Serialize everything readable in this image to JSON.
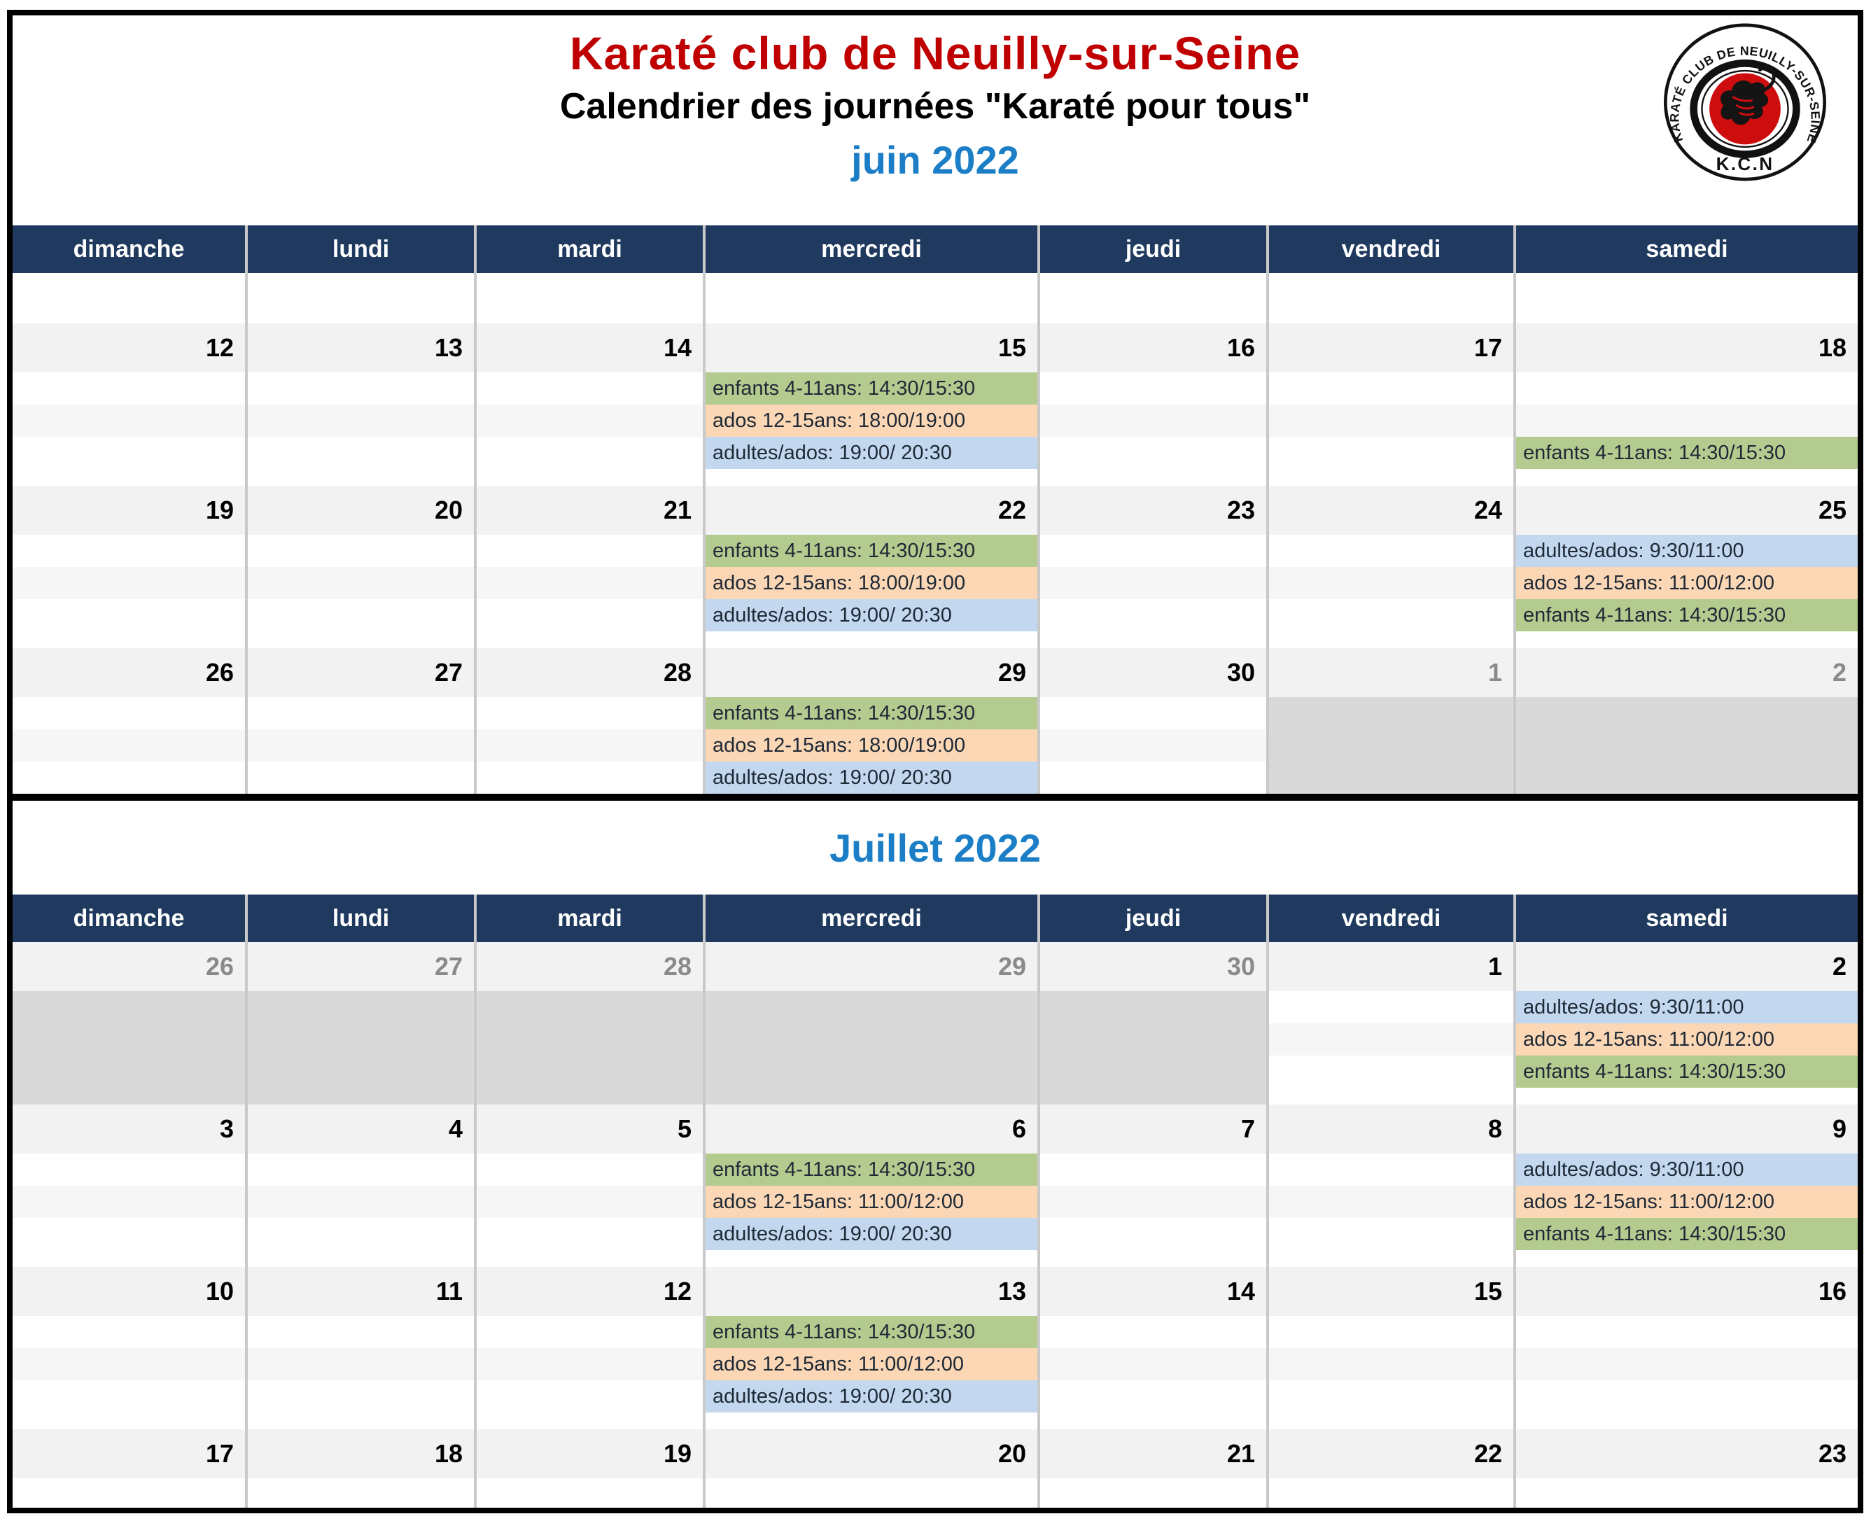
{
  "page": {
    "title": "Karaté club de Neuilly-sur-Seine",
    "subtitle": "Calendrier des journées \"Karaté pour tous\""
  },
  "logo": {
    "ring_text": "KARATÉ CLUB DE NEUILLY-SUR-SEINE",
    "acronym": "K.C.N"
  },
  "weekdays": [
    "dimanche",
    "lundi",
    "mardi",
    "mercredi",
    "jeudi",
    "vendredi",
    "samedi"
  ],
  "colors": {
    "title_red": "#C00000",
    "month_blue": "#1B7EC6",
    "header_navy": "#1F3A5E",
    "event_green": "#B4CB90",
    "event_orange": "#FBD7B5",
    "event_blue": "#C3D8EF",
    "number_band_gray": "#F2F2F2",
    "out_of_month_gray": "#D9D9D9",
    "muted_number_gray": "#8A8A8A",
    "logo_red": "#CE0E0E"
  },
  "months": [
    {
      "title": "juin 2022",
      "weeks": [
        {
          "type": "empty",
          "days": [
            {},
            {},
            {},
            {},
            {},
            {},
            {}
          ]
        },
        {
          "days": [
            {
              "num": "12"
            },
            {
              "num": "13"
            },
            {
              "num": "14"
            },
            {
              "num": "15",
              "events": [
                {
                  "c": "green",
                  "t": "enfants 4-11ans: 14:30/15:30"
                },
                {
                  "c": "orange",
                  "t": "ados 12-15ans: 18:00/19:00"
                },
                {
                  "c": "blue",
                  "t": "adultes/ados: 19:00/ 20:30"
                }
              ]
            },
            {
              "num": "16"
            },
            {
              "num": "17"
            },
            {
              "num": "18",
              "events": [
                null,
                null,
                {
                  "c": "green",
                  "t": "enfants 4-11ans: 14:30/15:30"
                }
              ]
            }
          ]
        },
        {
          "days": [
            {
              "num": "19"
            },
            {
              "num": "20"
            },
            {
              "num": "21"
            },
            {
              "num": "22",
              "events": [
                {
                  "c": "green",
                  "t": "enfants 4-11ans: 14:30/15:30"
                },
                {
                  "c": "orange",
                  "t": "ados 12-15ans: 18:00/19:00"
                },
                {
                  "c": "blue",
                  "t": "adultes/ados: 19:00/ 20:30"
                }
              ]
            },
            {
              "num": "23"
            },
            {
              "num": "24"
            },
            {
              "num": "25",
              "events": [
                {
                  "c": "blue",
                  "t": "adultes/ados: 9:30/11:00"
                },
                {
                  "c": "orange",
                  "t": "ados 12-15ans: 11:00/12:00"
                },
                {
                  "c": "green",
                  "t": "enfants 4-11ans: 14:30/15:30"
                }
              ]
            }
          ]
        },
        {
          "type": "last",
          "days": [
            {
              "num": "26"
            },
            {
              "num": "27"
            },
            {
              "num": "28"
            },
            {
              "num": "29",
              "events": [
                {
                  "c": "green",
                  "t": "enfants 4-11ans: 14:30/15:30"
                },
                {
                  "c": "orange",
                  "t": "ados 12-15ans: 18:00/19:00"
                },
                {
                  "c": "blue",
                  "t": "adultes/ados: 19:00/ 20:30"
                }
              ]
            },
            {
              "num": "30"
            },
            {
              "num": "1",
              "muted": true,
              "fill": "gray"
            },
            {
              "num": "2",
              "muted": true,
              "fill": "gray"
            }
          ]
        }
      ]
    },
    {
      "title": "Juillet 2022",
      "weeks": [
        {
          "days": [
            {
              "num": "26",
              "muted": true,
              "fill": "gray"
            },
            {
              "num": "27",
              "muted": true,
              "fill": "gray"
            },
            {
              "num": "28",
              "muted": true,
              "fill": "gray"
            },
            {
              "num": "29",
              "muted": true,
              "fill": "gray"
            },
            {
              "num": "30",
              "muted": true,
              "fill": "gray"
            },
            {
              "num": "1"
            },
            {
              "num": "2",
              "events": [
                {
                  "c": "blue",
                  "t": "adultes/ados: 9:30/11:00"
                },
                {
                  "c": "orange",
                  "t": "ados 12-15ans: 11:00/12:00"
                },
                {
                  "c": "green",
                  "t": "enfants 4-11ans: 14:30/15:30"
                }
              ]
            }
          ]
        },
        {
          "days": [
            {
              "num": "3"
            },
            {
              "num": "4"
            },
            {
              "num": "5"
            },
            {
              "num": "6",
              "events": [
                {
                  "c": "green",
                  "t": "enfants 4-11ans: 14:30/15:30"
                },
                {
                  "c": "orange",
                  "t": "ados 12-15ans: 11:00/12:00"
                },
                {
                  "c": "blue",
                  "t": "adultes/ados: 19:00/ 20:30"
                }
              ]
            },
            {
              "num": "7"
            },
            {
              "num": "8"
            },
            {
              "num": "9",
              "events": [
                {
                  "c": "blue",
                  "t": "adultes/ados: 9:30/11:00"
                },
                {
                  "c": "orange",
                  "t": "ados 12-15ans: 11:00/12:00"
                },
                {
                  "c": "green",
                  "t": "enfants 4-11ans: 14:30/15:30"
                }
              ]
            }
          ]
        },
        {
          "days": [
            {
              "num": "10"
            },
            {
              "num": "11"
            },
            {
              "num": "12"
            },
            {
              "num": "13",
              "events": [
                {
                  "c": "green",
                  "t": "enfants 4-11ans: 14:30/15:30"
                },
                {
                  "c": "orange",
                  "t": "ados 12-15ans: 11:00/12:00"
                },
                {
                  "c": "blue",
                  "t": "adultes/ados: 19:00/ 20:30"
                }
              ]
            },
            {
              "num": "14"
            },
            {
              "num": "15"
            },
            {
              "num": "16"
            }
          ]
        },
        {
          "type": "partial",
          "days": [
            {
              "num": "17"
            },
            {
              "num": "18"
            },
            {
              "num": "19"
            },
            {
              "num": "20"
            },
            {
              "num": "21"
            },
            {
              "num": "22"
            },
            {
              "num": "23"
            }
          ]
        }
      ]
    }
  ]
}
